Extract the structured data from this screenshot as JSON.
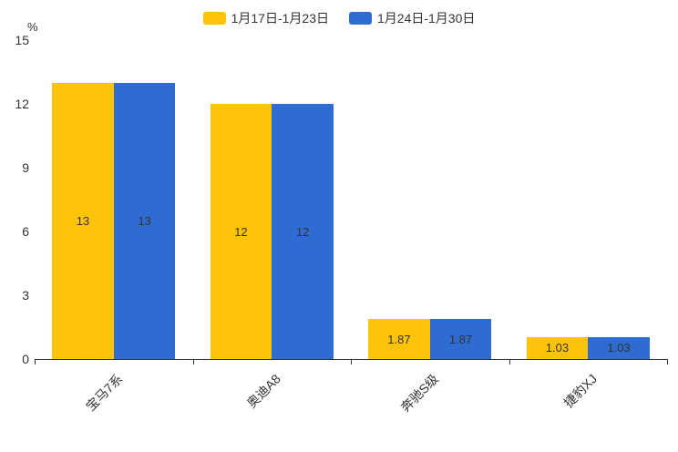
{
  "chart_data": {
    "type": "bar",
    "title": "",
    "categories": [
      "宝马7系",
      "奥迪A8",
      "奔驰S级",
      "捷豹XJ"
    ],
    "series": [
      {
        "name": "1月17日-1月23日",
        "color": "#FDC308",
        "values": [
          13,
          12,
          1.87,
          1.03
        ]
      },
      {
        "name": "1月24日-1月30日",
        "color": "#2E6CD1",
        "values": [
          13,
          12,
          1.87,
          1.03
        ]
      }
    ],
    "data_labels": [
      [
        "13",
        "12",
        "1.87",
        "1.03"
      ],
      [
        "13",
        "12",
        "1.87",
        "1.03"
      ]
    ],
    "xlabel": "",
    "ylabel": "%",
    "ylim": [
      0,
      15
    ],
    "yticks": [
      0,
      3,
      6,
      9,
      12,
      15
    ],
    "grid": false,
    "legend_position": "top",
    "bar_label_color": "#333333",
    "axis_color": "#333333"
  }
}
